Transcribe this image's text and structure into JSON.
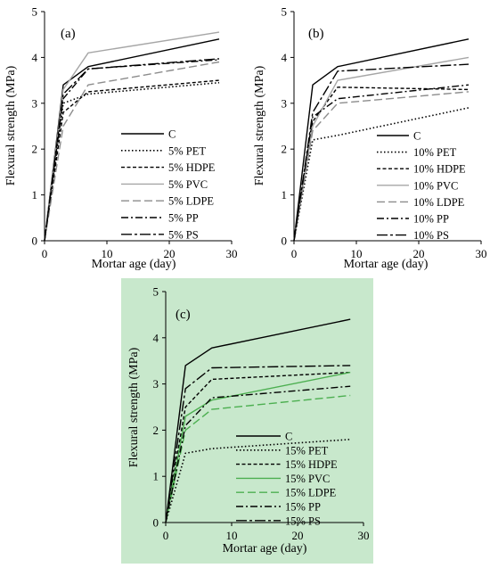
{
  "chart_data": [
    {
      "type": "line",
      "panel_label": "(a)",
      "xlabel": "Mortar age (day)",
      "ylabel": "Flexural strength (MPa)",
      "xlim": [
        0,
        30
      ],
      "ylim": [
        0,
        5
      ],
      "xticks": [
        "0",
        "10",
        "20",
        "30"
      ],
      "yticks": [
        "0",
        "1",
        "2",
        "3",
        "4",
        "5"
      ],
      "background": "#ffffff",
      "x": [
        0,
        3,
        7,
        28
      ],
      "series": [
        {
          "name": "C",
          "style": "solid",
          "color": "#000000",
          "values": [
            0,
            3.4,
            3.8,
            4.4
          ]
        },
        {
          "name": "5% PET",
          "style": "dot",
          "color": "#000000",
          "values": [
            0,
            3.0,
            3.2,
            3.45
          ]
        },
        {
          "name": "5% HDPE",
          "style": "dash-short",
          "color": "#000000",
          "values": [
            0,
            2.8,
            3.25,
            3.5
          ]
        },
        {
          "name": "5% PVC",
          "style": "solid",
          "color": "#a6a6a6",
          "values": [
            0,
            3.3,
            4.1,
            4.55
          ]
        },
        {
          "name": "5% LDPE",
          "style": "dash-long",
          "color": "#8c8c8c",
          "values": [
            0,
            2.5,
            3.4,
            3.9
          ]
        },
        {
          "name": "5% PP",
          "style": "dash-dot",
          "color": "#000000",
          "values": [
            0,
            3.1,
            3.75,
            3.95
          ]
        },
        {
          "name": "5% PS",
          "style": "dash-dot-long",
          "color": "#000000",
          "values": [
            0,
            3.2,
            3.75,
            3.97
          ]
        }
      ]
    },
    {
      "type": "line",
      "panel_label": "(b)",
      "xlabel": "Mortar age (day)",
      "ylabel": "Flexural strength (MPa)",
      "xlim": [
        0,
        30
      ],
      "ylim": [
        0,
        5
      ],
      "xticks": [
        "0",
        "10",
        "20",
        "30"
      ],
      "yticks": [
        "0",
        "1",
        "2",
        "3",
        "4",
        "5"
      ],
      "background": "#ffffff",
      "x": [
        0,
        3,
        7,
        28
      ],
      "series": [
        {
          "name": "C",
          "style": "solid",
          "color": "#000000",
          "values": [
            0,
            3.4,
            3.8,
            4.4
          ]
        },
        {
          "name": "10% PET",
          "style": "dot",
          "color": "#000000",
          "values": [
            0,
            2.2,
            2.3,
            2.9
          ]
        },
        {
          "name": "10% HDPE",
          "style": "dash-short",
          "color": "#000000",
          "values": [
            0,
            2.6,
            3.35,
            3.3
          ]
        },
        {
          "name": "10% PVC",
          "style": "solid",
          "color": "#a6a6a6",
          "values": [
            0,
            2.5,
            3.5,
            4.0
          ]
        },
        {
          "name": "10% LDPE",
          "style": "dash-long",
          "color": "#8c8c8c",
          "values": [
            0,
            2.4,
            3.0,
            3.25
          ]
        },
        {
          "name": "10% PP",
          "style": "dash-dot",
          "color": "#000000",
          "values": [
            0,
            2.7,
            3.1,
            3.4
          ]
        },
        {
          "name": "10% PS",
          "style": "dash-dot-long",
          "color": "#000000",
          "values": [
            0,
            2.8,
            3.7,
            3.85
          ]
        }
      ]
    },
    {
      "type": "line",
      "panel_label": "(c)",
      "xlabel": "Mortar age (day)",
      "ylabel": "Flexural strength (MPa)",
      "xlim": [
        0,
        30
      ],
      "ylim": [
        0,
        5
      ],
      "xticks": [
        "0",
        "10",
        "20",
        "30"
      ],
      "yticks": [
        "0",
        "1",
        "2",
        "3",
        "4",
        "5"
      ],
      "background": "#c8e8cc",
      "x": [
        0,
        3,
        7,
        28
      ],
      "series": [
        {
          "name": "C",
          "style": "solid",
          "color": "#000000",
          "values": [
            0,
            3.4,
            3.78,
            4.4
          ]
        },
        {
          "name": "15% PET",
          "style": "dot",
          "color": "#000000",
          "values": [
            0,
            1.5,
            1.6,
            1.8
          ]
        },
        {
          "name": "15% HDPE",
          "style": "dash-short",
          "color": "#000000",
          "values": [
            0,
            2.5,
            3.1,
            3.25
          ]
        },
        {
          "name": "15% PVC",
          "style": "solid",
          "color": "#4caf50",
          "values": [
            0,
            2.3,
            2.65,
            3.25
          ]
        },
        {
          "name": "15% LDPE",
          "style": "dash-long",
          "color": "#4caf50",
          "values": [
            0,
            2.0,
            2.45,
            2.75
          ]
        },
        {
          "name": "15% PP",
          "style": "dash-dot",
          "color": "#000000",
          "values": [
            0,
            2.1,
            2.7,
            2.95
          ]
        },
        {
          "name": "15% PS",
          "style": "dash-dot-long",
          "color": "#000000",
          "values": [
            0,
            2.9,
            3.35,
            3.4
          ]
        }
      ]
    }
  ]
}
